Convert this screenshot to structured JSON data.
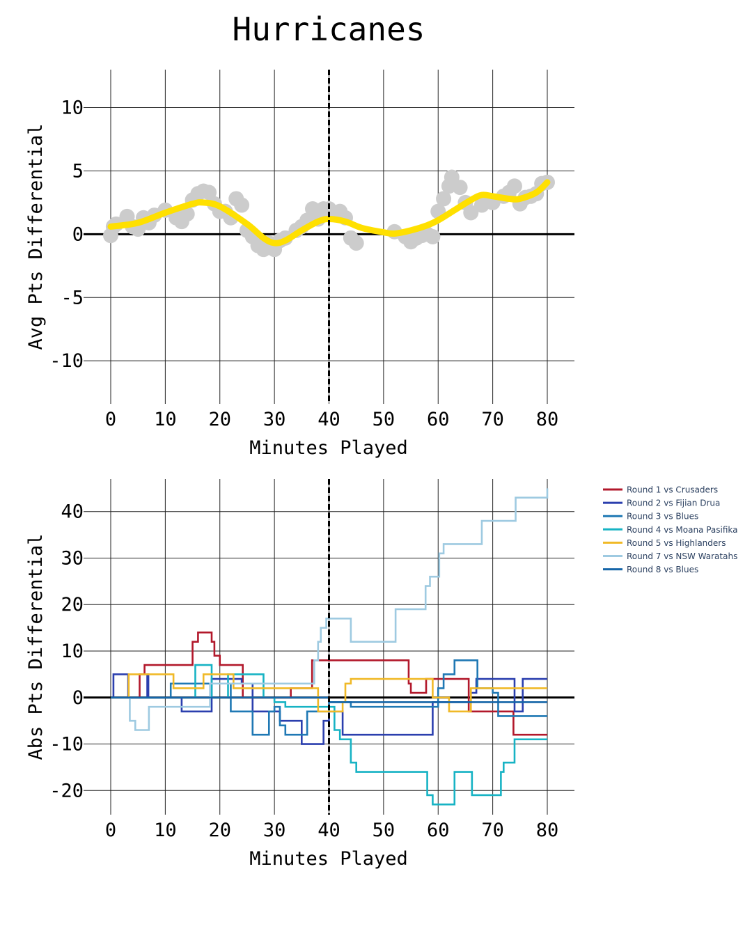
{
  "title": "Hurricanes",
  "chart_data": [
    {
      "type": "scatter",
      "title": "Hurricanes",
      "xlabel": "Minutes Played",
      "ylabel": "Avg Pts Differential",
      "xlim": [
        -5,
        85
      ],
      "ylim": [
        -13.4,
        13
      ],
      "xticks": [
        0,
        10,
        20,
        30,
        40,
        50,
        60,
        70,
        80
      ],
      "yticks": [
        -10,
        -5,
        0,
        5,
        10
      ],
      "grid": true,
      "halftime_line": 40,
      "colors": {
        "points": "#cccccc",
        "smooth": "#ffe000"
      },
      "points": [
        [
          0,
          -0.1
        ],
        [
          0.5,
          0.6
        ],
        [
          1,
          0.8
        ],
        [
          3,
          1.4
        ],
        [
          4,
          0.6
        ],
        [
          5,
          0.4
        ],
        [
          6,
          1.3
        ],
        [
          7,
          0.9
        ],
        [
          8,
          1.5
        ],
        [
          10,
          1.9
        ],
        [
          12,
          1.3
        ],
        [
          13,
          1.0
        ],
        [
          14,
          1.6
        ],
        [
          15,
          2.7
        ],
        [
          16,
          3.2
        ],
        [
          17,
          3.4
        ],
        [
          18,
          3.3
        ],
        [
          19,
          2.4
        ],
        [
          20,
          1.8
        ],
        [
          21,
          1.8
        ],
        [
          22,
          1.3
        ],
        [
          23,
          2.8
        ],
        [
          24,
          2.3
        ],
        [
          25,
          0.3
        ],
        [
          26,
          -0.2
        ],
        [
          27,
          -0.9
        ],
        [
          28,
          -1.2
        ],
        [
          29,
          -0.7
        ],
        [
          30,
          -1.2
        ],
        [
          31,
          -0.5
        ],
        [
          32,
          -0.3
        ],
        [
          34,
          0.3
        ],
        [
          35,
          0.6
        ],
        [
          36,
          1.1
        ],
        [
          37,
          2.0
        ],
        [
          38,
          1.2
        ],
        [
          39,
          2.0
        ],
        [
          40,
          2.0
        ],
        [
          41,
          1.6
        ],
        [
          42,
          1.8
        ],
        [
          43,
          1.3
        ],
        [
          44,
          -0.3
        ],
        [
          45,
          -0.7
        ],
        [
          52,
          0.2
        ],
        [
          54,
          -0.2
        ],
        [
          55,
          -0.6
        ],
        [
          56,
          -0.3
        ],
        [
          57,
          -0.1
        ],
        [
          58,
          0
        ],
        [
          59,
          -0.2
        ],
        [
          60,
          1.8
        ],
        [
          61,
          2.8
        ],
        [
          62,
          3.8
        ],
        [
          62.5,
          4.5
        ],
        [
          64,
          3.7
        ],
        [
          65,
          2.5
        ],
        [
          66,
          1.7
        ],
        [
          68,
          2.3
        ],
        [
          69,
          2.6
        ],
        [
          70,
          2.5
        ],
        [
          72,
          3.0
        ],
        [
          73,
          3.3
        ],
        [
          74,
          3.8
        ],
        [
          75,
          2.4
        ],
        [
          76,
          2.9
        ],
        [
          77,
          3.0
        ],
        [
          78,
          3.2
        ],
        [
          79,
          4.0
        ],
        [
          80,
          4.1
        ]
      ],
      "smooth": [
        [
          0,
          0.6
        ],
        [
          5,
          0.9
        ],
        [
          10,
          1.7
        ],
        [
          15,
          2.4
        ],
        [
          17,
          2.5
        ],
        [
          20,
          2.2
        ],
        [
          25,
          0.8
        ],
        [
          28,
          -0.3
        ],
        [
          30,
          -0.7
        ],
        [
          32,
          -0.5
        ],
        [
          35,
          0.3
        ],
        [
          38,
          1.0
        ],
        [
          40,
          1.2
        ],
        [
          43,
          1.0
        ],
        [
          46,
          0.5
        ],
        [
          50,
          0.15
        ],
        [
          52,
          0.05
        ],
        [
          55,
          0.3
        ],
        [
          58,
          0.7
        ],
        [
          60,
          1.1
        ],
        [
          63,
          1.9
        ],
        [
          66,
          2.7
        ],
        [
          68,
          3.1
        ],
        [
          70,
          3.0
        ],
        [
          73,
          2.8
        ],
        [
          75,
          2.8
        ],
        [
          78,
          3.3
        ],
        [
          80,
          4.1
        ]
      ]
    },
    {
      "type": "line",
      "xlabel": "Minutes Played",
      "ylabel": "Abs Pts Differential",
      "xlim": [
        -5,
        85
      ],
      "ylim": [
        -25.2,
        47
      ],
      "xticks": [
        0,
        10,
        20,
        30,
        40,
        50,
        60,
        70,
        80
      ],
      "yticks": [
        -20,
        -10,
        0,
        10,
        20,
        30,
        40
      ],
      "grid": true,
      "halftime_line": 40,
      "legend_position": "right",
      "series": [
        {
          "name": "Round 1 vs Crusaders",
          "color": "#b2182b",
          "steps": [
            [
              0,
              0
            ],
            [
              5.3,
              5
            ],
            [
              6.2,
              7
            ],
            [
              15,
              12
            ],
            [
              16,
              14
            ],
            [
              18.5,
              12
            ],
            [
              19,
              9
            ],
            [
              20,
              7
            ],
            [
              24.2,
              0
            ],
            [
              33,
              2
            ],
            [
              36.9,
              8
            ],
            [
              54.6,
              3
            ],
            [
              55,
              1
            ],
            [
              57.8,
              4
            ],
            [
              65.6,
              -3
            ],
            [
              73.8,
              -8
            ],
            [
              80,
              -8
            ]
          ]
        },
        {
          "name": "Round 2 vs Fijian Drua",
          "color": "#2b3fae",
          "steps": [
            [
              0,
              0
            ],
            [
              0.5,
              5
            ],
            [
              3.2,
              0
            ],
            [
              6.7,
              5
            ],
            [
              6.9,
              0
            ],
            [
              13,
              -3
            ],
            [
              18.5,
              4
            ],
            [
              24,
              3
            ],
            [
              26,
              -3
            ],
            [
              30,
              -3
            ],
            [
              31,
              -5
            ],
            [
              35,
              -10
            ],
            [
              39,
              -5
            ],
            [
              40,
              -3
            ],
            [
              42.5,
              -8
            ],
            [
              58.8,
              -8
            ],
            [
              59,
              -1
            ],
            [
              62,
              -1
            ],
            [
              66,
              1
            ],
            [
              67,
              4
            ],
            [
              73.5,
              4
            ],
            [
              74,
              -3
            ],
            [
              75,
              -3
            ],
            [
              75.5,
              4
            ],
            [
              80,
              4
            ]
          ]
        },
        {
          "name": "Round 3 vs Blues",
          "color": "#1f78b4",
          "steps": [
            [
              0,
              0
            ],
            [
              11,
              3
            ],
            [
              20,
              3
            ],
            [
              22,
              -3
            ],
            [
              25,
              -3
            ],
            [
              26,
              -8
            ],
            [
              28,
              -8
            ],
            [
              29,
              -3
            ],
            [
              30,
              -2
            ],
            [
              31,
              -6
            ],
            [
              32,
              -8
            ],
            [
              35,
              -8
            ],
            [
              36,
              -3
            ],
            [
              38,
              -3
            ],
            [
              40,
              -1
            ],
            [
              42,
              -1
            ],
            [
              44,
              -2
            ],
            [
              59,
              -2
            ],
            [
              60,
              2
            ],
            [
              61,
              5
            ],
            [
              62,
              5
            ],
            [
              63,
              8
            ],
            [
              67,
              8
            ],
            [
              67.2,
              2
            ],
            [
              70,
              1
            ],
            [
              71,
              -4
            ],
            [
              80,
              -4
            ]
          ]
        },
        {
          "name": "Round 4 vs Moana Pasifika",
          "color": "#17b3c4",
          "steps": [
            [
              0,
              0
            ],
            [
              15.5,
              7
            ],
            [
              18.5,
              0
            ],
            [
              21.5,
              5
            ],
            [
              24,
              5
            ],
            [
              28,
              0
            ],
            [
              30,
              -1
            ],
            [
              32,
              -2
            ],
            [
              40,
              -2
            ],
            [
              41,
              -7
            ],
            [
              42,
              -9
            ],
            [
              44,
              -14
            ],
            [
              45,
              -16
            ],
            [
              58,
              -21
            ],
            [
              59,
              -23
            ],
            [
              62,
              -23
            ],
            [
              63,
              -16
            ],
            [
              66,
              -16
            ],
            [
              66.2,
              -21
            ],
            [
              71,
              -21
            ],
            [
              71.5,
              -16
            ],
            [
              72,
              -14
            ],
            [
              74,
              -9
            ],
            [
              80,
              -9
            ]
          ]
        },
        {
          "name": "Round 5 vs Highlanders",
          "color": "#f0b927",
          "steps": [
            [
              0,
              0
            ],
            [
              3.3,
              5
            ],
            [
              11.5,
              2
            ],
            [
              17,
              5
            ],
            [
              22.5,
              2
            ],
            [
              36,
              2
            ],
            [
              38,
              -3
            ],
            [
              42.5,
              -1
            ],
            [
              43,
              3
            ],
            [
              44,
              4
            ],
            [
              58,
              4
            ],
            [
              59,
              0
            ],
            [
              62,
              -3
            ],
            [
              66,
              2
            ],
            [
              80,
              2
            ]
          ]
        },
        {
          "name": "Round 7 vs NSW Waratahs",
          "color": "#9ecae1",
          "steps": [
            [
              0,
              0
            ],
            [
              3.5,
              -5
            ],
            [
              4.5,
              -7
            ],
            [
              7,
              -2
            ],
            [
              18,
              -2
            ],
            [
              18.2,
              3
            ],
            [
              37,
              3
            ],
            [
              37.3,
              8
            ],
            [
              38,
              12
            ],
            [
              38.5,
              15
            ],
            [
              39.5,
              17
            ],
            [
              44,
              12
            ],
            [
              52,
              12
            ],
            [
              52.2,
              19
            ],
            [
              57.5,
              19
            ],
            [
              57.7,
              24
            ],
            [
              58.5,
              26
            ],
            [
              60,
              26
            ],
            [
              60.2,
              31
            ],
            [
              61,
              33
            ],
            [
              65,
              33
            ],
            [
              68,
              38
            ],
            [
              74,
              38
            ],
            [
              74.2,
              43
            ],
            [
              79,
              43
            ],
            [
              80,
              45
            ]
          ]
        },
        {
          "name": "Round 8 vs Blues",
          "color": "#1565a8",
          "steps": [
            [
              0,
              0
            ],
            [
              38.5,
              0
            ],
            [
              40,
              -1
            ],
            [
              80,
              -1
            ]
          ]
        }
      ]
    }
  ]
}
